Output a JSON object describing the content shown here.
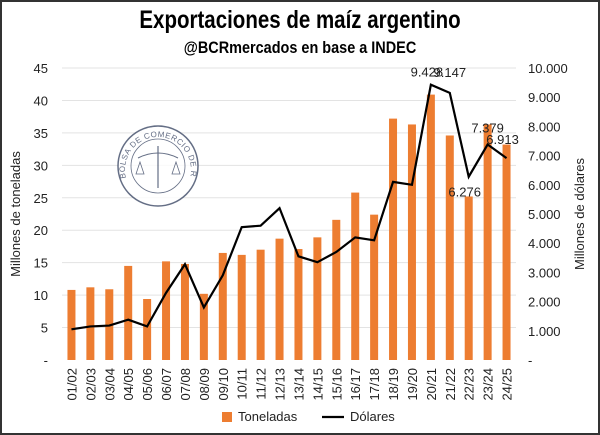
{
  "chart_data": {
    "type": "bar+line",
    "title": "Exportaciones de maíz argentino",
    "subtitle": "@BCRmercados en base a INDEC",
    "ylabel": "Millones de toneladas",
    "y2label": "Millones de dólares",
    "ylim": [
      0,
      45
    ],
    "y2lim": [
      0,
      10000
    ],
    "yticks": [
      "-",
      "5",
      "10",
      "15",
      "20",
      "25",
      "30",
      "35",
      "40",
      "45"
    ],
    "y2ticks": [
      "-",
      "1.000",
      "2.000",
      "3.000",
      "4.000",
      "5.000",
      "6.000",
      "7.000",
      "8.000",
      "9.000",
      "10.000"
    ],
    "grid": true,
    "legend_position": "bottom",
    "categories": [
      "01/02",
      "02/03",
      "03/04",
      "04/05",
      "05/06",
      "06/07",
      "07/08",
      "08/09",
      "09/10",
      "10/11",
      "11/12",
      "12/13",
      "13/14",
      "14/15",
      "15/16",
      "16/17",
      "17/18",
      "18/19",
      "19/20",
      "20/21",
      "21/22",
      "22/23",
      "23/24",
      "24/25"
    ],
    "series": [
      {
        "name": "Toneladas",
        "type": "bar",
        "axis": "left",
        "color": "#ED7D31",
        "values": [
          10.8,
          11.2,
          10.9,
          14.5,
          9.4,
          15.2,
          14.8,
          10.2,
          16.5,
          16.2,
          17.0,
          18.7,
          17.1,
          18.9,
          21.6,
          25.8,
          22.4,
          37.2,
          36.3,
          40.9,
          34.6,
          25.2,
          36.3,
          33.2
        ]
      },
      {
        "name": "Dólares",
        "type": "line",
        "axis": "right",
        "color": "#000000",
        "values": [
          1050,
          1150,
          1180,
          1380,
          1150,
          2300,
          3280,
          1800,
          2900,
          4550,
          4600,
          5200,
          3550,
          3350,
          3700,
          4200,
          4100,
          6100,
          6000,
          9428,
          9147,
          6276,
          7379,
          6913
        ]
      }
    ],
    "data_labels": [
      {
        "category": "20/21",
        "text": "9.428"
      },
      {
        "category": "21/22",
        "text": "9.147"
      },
      {
        "category": "22/23",
        "text": "6.276"
      },
      {
        "category": "23/24",
        "text": "7.379"
      },
      {
        "category": "24/25",
        "text": "6.913"
      }
    ]
  },
  "watermark": {
    "text": "BOLSA DE COMERCIO DE ROSARIO"
  }
}
